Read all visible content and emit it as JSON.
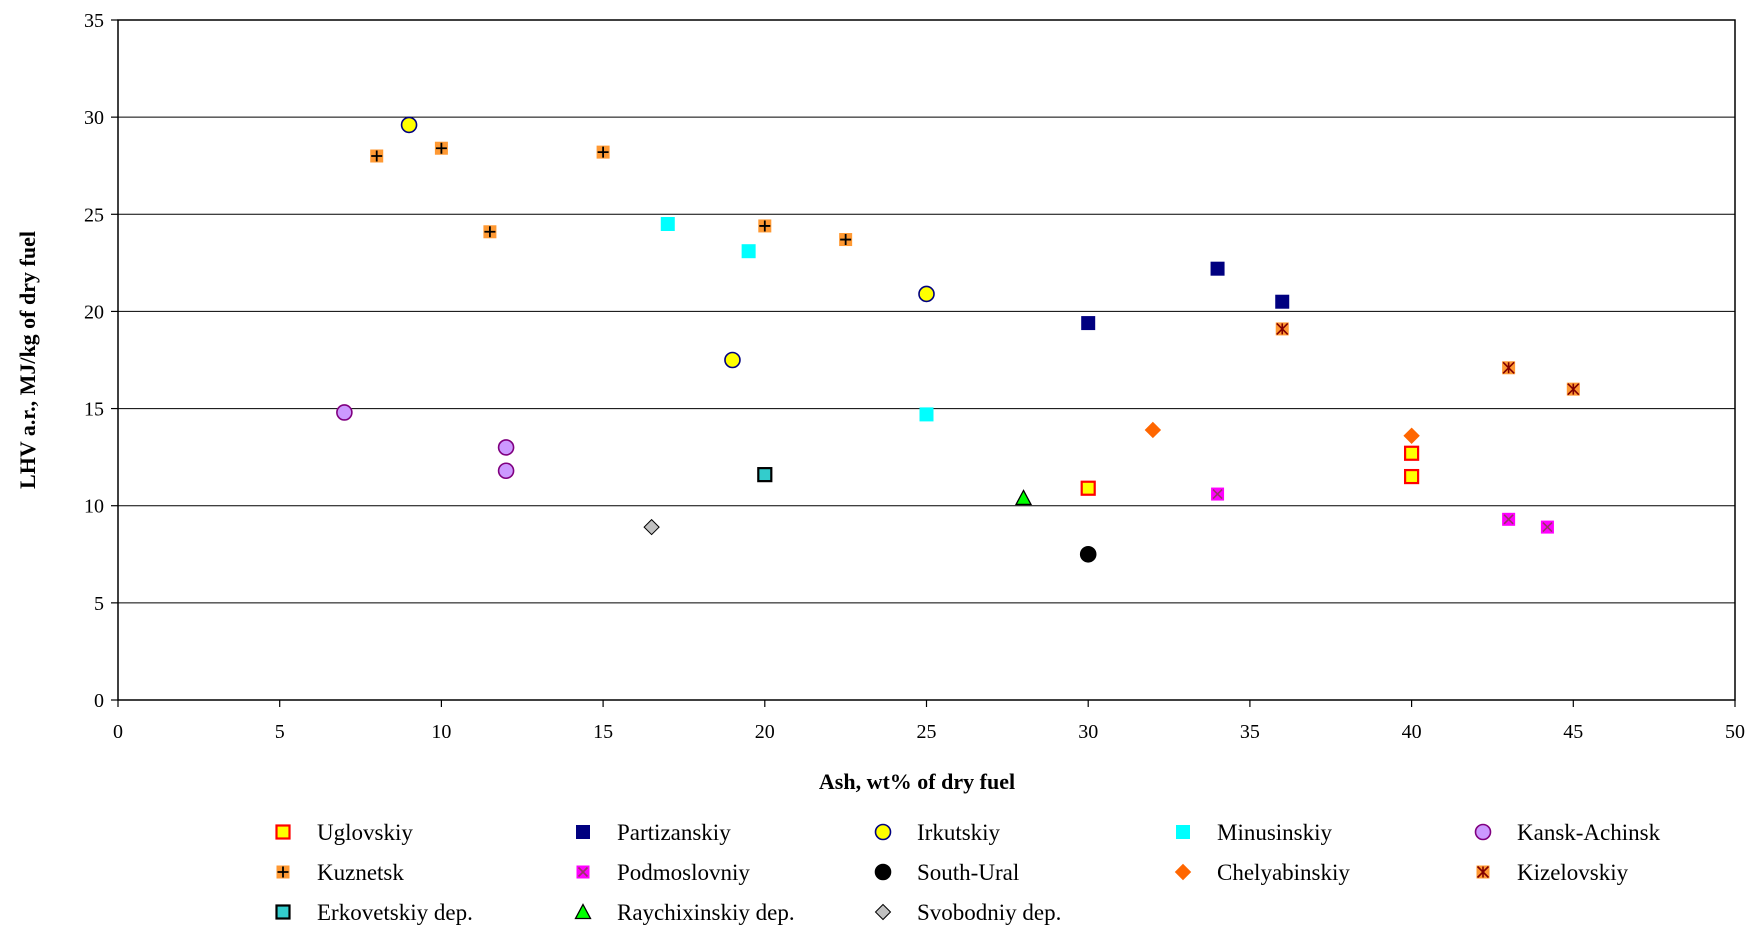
{
  "chart_data": {
    "type": "scatter",
    "title": "",
    "xlabel": "Ash, wt% of dry fuel",
    "ylabel": "LHV a.r., MJ/kg of dry fuel",
    "xlim": [
      0,
      50
    ],
    "ylim": [
      0,
      35
    ],
    "xticks": [
      0,
      5,
      10,
      15,
      20,
      25,
      30,
      35,
      40,
      45,
      50
    ],
    "yticks": [
      0,
      5,
      10,
      15,
      20,
      25,
      30,
      35
    ],
    "grid": "horizontal major gridlines",
    "legend_position": "bottom",
    "series": [
      {
        "name": "Uglovskiy",
        "marker": "square-open",
        "fill": "#FFFF00",
        "stroke": "#FF0000",
        "points": [
          [
            30,
            10.9
          ],
          [
            40,
            12.7
          ],
          [
            40,
            11.5
          ]
        ]
      },
      {
        "name": "Partizanskiy",
        "marker": "square",
        "fill": "#000080",
        "stroke": "#000080",
        "points": [
          [
            30,
            19.4
          ],
          [
            34,
            22.2
          ],
          [
            36,
            20.5
          ]
        ]
      },
      {
        "name": "Irkutskiy",
        "marker": "circle",
        "fill": "#FFFF00",
        "stroke": "#000080",
        "points": [
          [
            9,
            29.6
          ],
          [
            19,
            17.5
          ],
          [
            25,
            20.9
          ]
        ]
      },
      {
        "name": "Minusinskiy",
        "marker": "square",
        "fill": "#00FFFF",
        "stroke": "#00FFFF",
        "points": [
          [
            17,
            24.5
          ],
          [
            19.5,
            23.1
          ],
          [
            25,
            14.7
          ]
        ]
      },
      {
        "name": "Kansk-Achinsk",
        "marker": "circle",
        "fill": "#CC99FF",
        "stroke": "#800080",
        "points": [
          [
            7,
            14.8
          ],
          [
            12,
            13.0
          ],
          [
            12,
            11.8
          ]
        ]
      },
      {
        "name": "Kuznetsk",
        "marker": "plus-square",
        "fill": "#FF9933",
        "stroke": "#000000",
        "points": [
          [
            8,
            28.0
          ],
          [
            10,
            28.4
          ],
          [
            11.5,
            24.1
          ],
          [
            15,
            28.2
          ],
          [
            20,
            24.4
          ],
          [
            22.5,
            23.7
          ]
        ]
      },
      {
        "name": "Podmoslovniy",
        "marker": "x-square",
        "fill": "#FF00FF",
        "stroke": "#993366",
        "points": [
          [
            34,
            10.6
          ],
          [
            43,
            9.3
          ],
          [
            44.2,
            8.9
          ]
        ]
      },
      {
        "name": "South-Ural",
        "marker": "circle",
        "fill": "#000000",
        "stroke": "#000000",
        "points": [
          [
            30,
            7.5
          ]
        ]
      },
      {
        "name": "Chelyabinskiy",
        "marker": "diamond",
        "fill": "#FF6600",
        "stroke": "#FF6600",
        "points": [
          [
            32,
            13.9
          ],
          [
            40,
            13.6
          ]
        ]
      },
      {
        "name": "Kizelovskiy",
        "marker": "star-square",
        "fill": "#FF9933",
        "stroke": "#800000",
        "points": [
          [
            36,
            19.1
          ],
          [
            43,
            17.1
          ],
          [
            45,
            16.0
          ]
        ]
      },
      {
        "name": "Erkovetskiy dep.",
        "marker": "square-open",
        "fill": "#33CCCC",
        "stroke": "#000000",
        "points": [
          [
            20,
            11.6
          ]
        ]
      },
      {
        "name": "Raychixinskiy dep.",
        "marker": "triangle",
        "fill": "#00FF00",
        "stroke": "#000000",
        "points": [
          [
            28,
            10.4
          ]
        ]
      },
      {
        "name": "Svobodniy dep.",
        "marker": "diamond",
        "fill": "#C0C0C0",
        "stroke": "#000000",
        "points": [
          [
            16.5,
            8.9
          ]
        ]
      }
    ]
  }
}
